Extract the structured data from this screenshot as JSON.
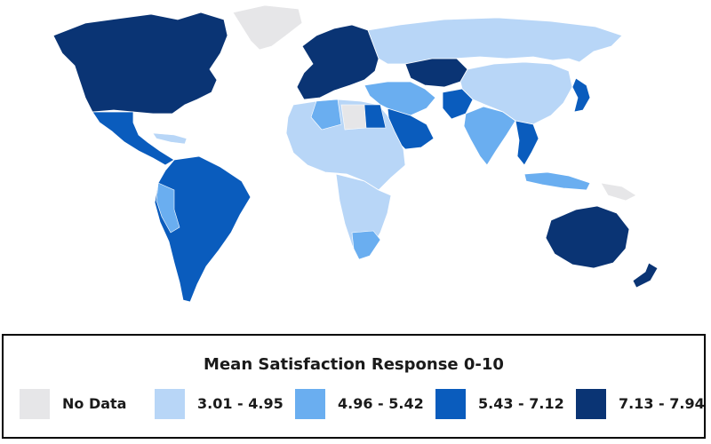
{
  "legend": {
    "title": "Mean Satisfaction Response 0-10",
    "items": [
      {
        "label": "No Data",
        "color": "#e6e6e8"
      },
      {
        "label": "3.01 - 4.95",
        "color": "#b8d6f7"
      },
      {
        "label": "4.96 - 5.42",
        "color": "#6aaef0"
      },
      {
        "label": "5.43 - 7.12",
        "color": "#0a5cbd"
      },
      {
        "label": "7.13 - 7.94",
        "color": "#0a3474"
      }
    ]
  }
}
